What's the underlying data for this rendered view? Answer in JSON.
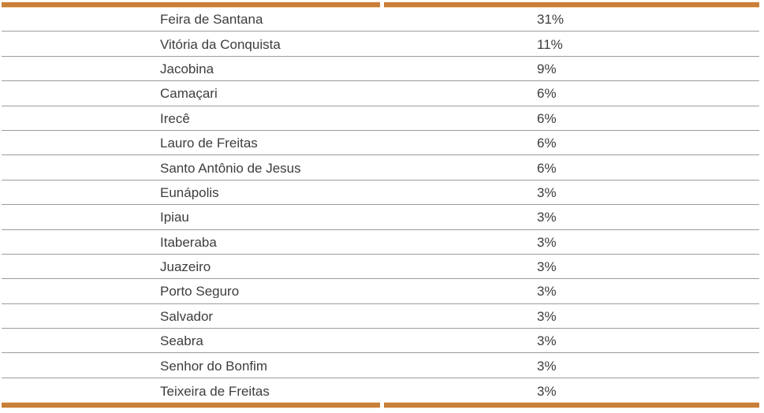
{
  "chart_data": {
    "type": "table",
    "categories": [
      "Feira de Santana",
      "Vitória da Conquista",
      "Jacobina",
      "Camaçari",
      "Irecê",
      "Lauro de Freitas",
      "Santo Antônio de Jesus",
      "Eunápolis",
      "Ipiau",
      "Itaberaba",
      "Juazeiro",
      "Porto Seguro",
      "Salvador",
      "Seabra",
      "Senhor do Bonfim",
      "Teixeira de Freitas"
    ],
    "values": [
      31,
      11,
      9,
      6,
      6,
      6,
      6,
      3,
      3,
      3,
      3,
      3,
      3,
      3,
      3,
      3
    ],
    "value_format": "percent",
    "title": "",
    "legend": "none",
    "grid": "horizontal-row-dividers"
  },
  "table": {
    "rows": [
      {
        "city": "Feira de Santana",
        "percent": "31%"
      },
      {
        "city": "Vitória da Conquista",
        "percent": "11%"
      },
      {
        "city": "Jacobina",
        "percent": "9%"
      },
      {
        "city": "Camaçari",
        "percent": "6%"
      },
      {
        "city": "Irecê",
        "percent": "6%"
      },
      {
        "city": "Lauro de Freitas",
        "percent": "6%"
      },
      {
        "city": "Santo Antônio de Jesus",
        "percent": "6%"
      },
      {
        "city": "Eunápolis",
        "percent": "3%"
      },
      {
        "city": "Ipiau",
        "percent": "3%"
      },
      {
        "city": "Itaberaba",
        "percent": "3%"
      },
      {
        "city": "Juazeiro",
        "percent": "3%"
      },
      {
        "city": "Porto Seguro",
        "percent": "3%"
      },
      {
        "city": "Salvador",
        "percent": "3%"
      },
      {
        "city": "Seabra",
        "percent": "3%"
      },
      {
        "city": "Senhor do Bonfim",
        "percent": "3%"
      },
      {
        "city": "Teixeira de Freitas",
        "percent": "3%"
      }
    ]
  },
  "colors": {
    "accent_border": "#C97E39",
    "row_divider": "#9B9B9B",
    "text": "#3D3D3D",
    "background": "#FFFFFF"
  }
}
